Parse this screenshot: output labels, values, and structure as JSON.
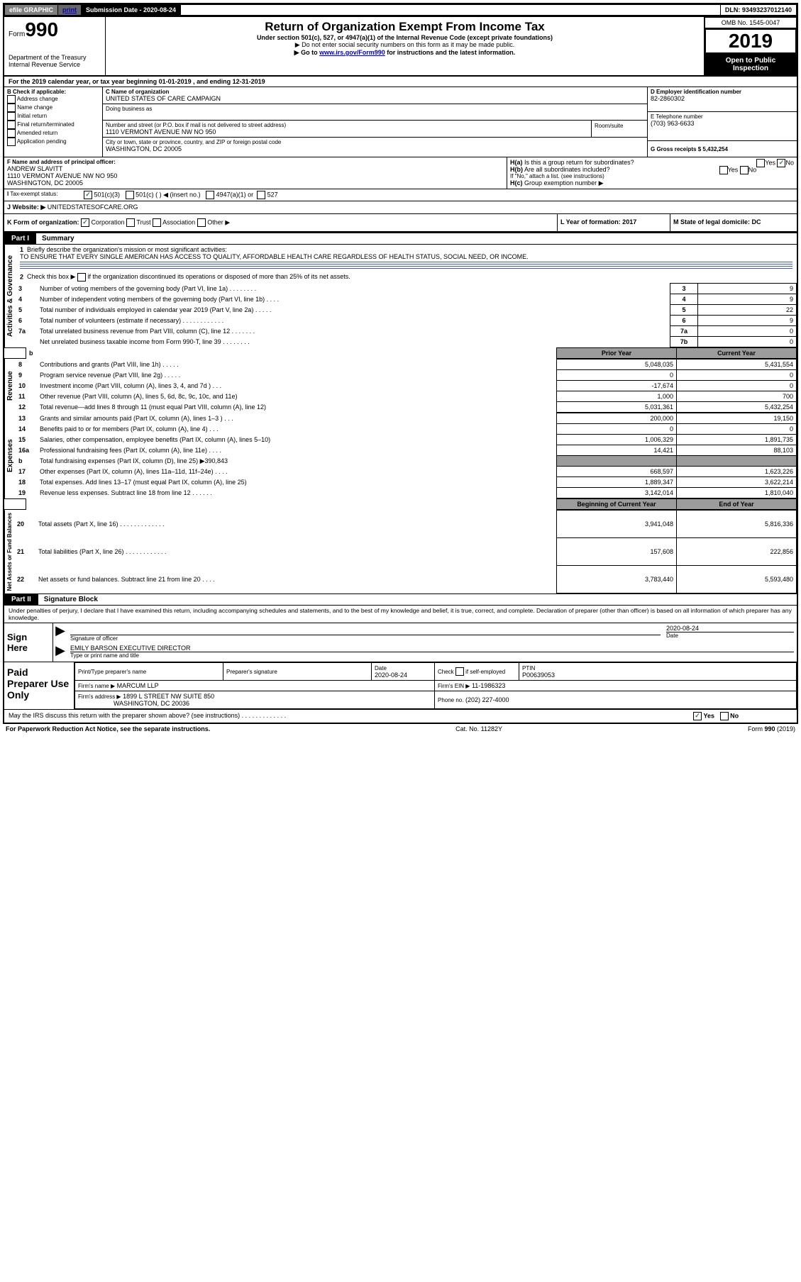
{
  "topbar": {
    "efile": "efile GRAPHIC",
    "print": "print",
    "sub_label": "Submission Date - 2020-08-24",
    "dln": "DLN: 93493237012140"
  },
  "header": {
    "form_prefix": "Form",
    "form_num": "990",
    "dept1": "Department of the Treasury",
    "dept2": "Internal Revenue Service",
    "title": "Return of Organization Exempt From Income Tax",
    "sub1": "Under section 501(c), 527, or 4947(a)(1) of the Internal Revenue Code (except private foundations)",
    "sub2": "▶ Do not enter social security numbers on this form as it may be made public.",
    "sub3_pre": "▶ Go to ",
    "sub3_link": "www.irs.gov/Form990",
    "sub3_post": " for instructions and the latest information.",
    "omb": "OMB No. 1545-0047",
    "year": "2019",
    "open": "Open to Public Inspection"
  },
  "period": {
    "line": "For the 2019 calendar year, or tax year beginning 01-01-2019   , and ending 12-31-2019"
  },
  "boxA": {
    "title": "A",
    "label": "B Check if applicable:",
    "opts": [
      "Address change",
      "Name change",
      "Initial return",
      "Final return/terminated",
      "Amended return",
      "Application pending"
    ]
  },
  "boxC": {
    "name_lbl": "C Name of organization",
    "name": "UNITED STATES OF CARE CAMPAIGN",
    "dba_lbl": "Doing business as",
    "addr_lbl": "Number and street (or P.O. box if mail is not delivered to street address)",
    "room_lbl": "Room/suite",
    "addr": "1110 VERMONT AVENUE NW NO 950",
    "city_lbl": "City or town, state or province, country, and ZIP or foreign postal code",
    "city": "WASHINGTON, DC  20005"
  },
  "boxD": {
    "lbl": "D Employer identification number",
    "val": "82-2860302"
  },
  "boxE": {
    "lbl": "E Telephone number",
    "val": "(703) 963-6633"
  },
  "boxG": {
    "lbl": "G Gross receipts $ 5,432,254"
  },
  "boxF": {
    "lbl": "F  Name and address of principal officer:",
    "name": "ANDREW SLAVITT",
    "addr1": "1110 VERMONT AVENUE NW NO 950",
    "addr2": "WASHINGTON, DC  20005"
  },
  "boxH": {
    "a": "Is this a group return for subordinates?",
    "b": "Are all subordinates included?",
    "note": "If \"No,\" attach a list. (see instructions)",
    "c": "Group exemption number ▶"
  },
  "boxI": {
    "lbl": "Tax-exempt status:",
    "o1": "501(c)(3)",
    "o2": "501(c) (   ) ◀ (insert no.)",
    "o3": "4947(a)(1) or",
    "o4": "527"
  },
  "boxJ": {
    "lbl": "Website: ▶",
    "val": "UNITEDSTATESOFCARE.ORG"
  },
  "boxK": {
    "lbl": "K Form of organization:",
    "o1": "Corporation",
    "o2": "Trust",
    "o3": "Association",
    "o4": "Other ▶"
  },
  "boxL": {
    "lbl": "L Year of formation: 2017"
  },
  "boxM": {
    "lbl": "M State of legal domicile: DC"
  },
  "part1": {
    "tab": "Part I",
    "title": "Summary",
    "q1_lbl": "Briefly describe the organization's mission or most significant activities:",
    "q1_val": "TO ENSURE THAT EVERY SINGLE AMERICAN HAS ACCESS TO QUALITY, AFFORDABLE HEALTH CARE REGARDLESS OF HEALTH STATUS, SOCIAL NEED, OR INCOME.",
    "q2": "Check this box ▶  if the organization discontinued its operations or disposed of more than 25% of its net assets.",
    "rows_ag": [
      {
        "n": "3",
        "t": "Number of voting members of the governing body (Part VI, line 1a)  .    .    .    .    .    .    .    .",
        "box": "3",
        "v": "9"
      },
      {
        "n": "4",
        "t": "Number of independent voting members of the governing body (Part VI, line 1b)  .    .    .    .",
        "box": "4",
        "v": "9"
      },
      {
        "n": "5",
        "t": "Total number of individuals employed in calendar year 2019 (Part V, line 2a)  .    .    .    .    .",
        "box": "5",
        "v": "22"
      },
      {
        "n": "6",
        "t": "Total number of volunteers (estimate if necessary)    .    .    .    .    .    .    .    .    .    .    .    .",
        "box": "6",
        "v": "9"
      },
      {
        "n": "7a",
        "t": "Total unrelated business revenue from Part VIII, column (C), line 12   .    .    .    .    .    .    .",
        "box": "7a",
        "v": "0"
      },
      {
        "n": "",
        "t": "Net unrelated business taxable income from Form 990-T, line 39   .    .    .    .    .    .    .    .",
        "box": "7b",
        "v": "0"
      }
    ],
    "col_prior": "Prior Year",
    "col_curr": "Current Year",
    "rows_rev": [
      {
        "n": "8",
        "t": "Contributions and grants (Part VIII, line 1h)    .    .    .    .    .",
        "p": "5,048,035",
        "c": "5,431,554"
      },
      {
        "n": "9",
        "t": "Program service revenue (Part VIII, line 2g)    .    .    .    .    .",
        "p": "0",
        "c": "0"
      },
      {
        "n": "10",
        "t": "Investment income (Part VIII, column (A), lines 3, 4, and 7d )    .    .    .",
        "p": "-17,674",
        "c": "0"
      },
      {
        "n": "11",
        "t": "Other revenue (Part VIII, column (A), lines 5, 6d, 8c, 9c, 10c, and 11e)",
        "p": "1,000",
        "c": "700"
      },
      {
        "n": "12",
        "t": "Total revenue—add lines 8 through 11 (must equal Part VIII, column (A), line 12)",
        "p": "5,031,361",
        "c": "5,432,254"
      }
    ],
    "rows_exp": [
      {
        "n": "13",
        "t": "Grants and similar amounts paid (Part IX, column (A), lines 1–3 )   .    .    .",
        "p": "200,000",
        "c": "19,150"
      },
      {
        "n": "14",
        "t": "Benefits paid to or for members (Part IX, column (A), line 4)   .    .    .",
        "p": "0",
        "c": "0"
      },
      {
        "n": "15",
        "t": "Salaries, other compensation, employee benefits (Part IX, column (A), lines 5–10)",
        "p": "1,006,329",
        "c": "1,891,735"
      },
      {
        "n": "16a",
        "t": "Professional fundraising fees (Part IX, column (A), line 11e)   .    .    .    .",
        "p": "14,421",
        "c": "88,103"
      },
      {
        "n": "b",
        "t": "Total fundraising expenses (Part IX, column (D), line 25) ▶390,843",
        "p": "",
        "c": "",
        "shade": true
      },
      {
        "n": "17",
        "t": "Other expenses (Part IX, column (A), lines 11a–11d, 11f–24e)   .    .    .    .",
        "p": "668,597",
        "c": "1,623,226"
      },
      {
        "n": "18",
        "t": "Total expenses. Add lines 13–17 (must equal Part IX, column (A), line 25)",
        "p": "1,889,347",
        "c": "3,622,214"
      },
      {
        "n": "19",
        "t": "Revenue less expenses. Subtract line 18 from line 12  .    .    .    .    .    .",
        "p": "3,142,014",
        "c": "1,810,040"
      }
    ],
    "col_beg": "Beginning of Current Year",
    "col_end": "End of Year",
    "rows_net": [
      {
        "n": "20",
        "t": "Total assets (Part X, line 16)  .    .    .    .    .    .    .    .    .    .    .    .    .",
        "p": "3,941,048",
        "c": "5,816,336"
      },
      {
        "n": "21",
        "t": "Total liabilities (Part X, line 26)  .    .    .    .    .    .    .    .    .    .    .    .",
        "p": "157,608",
        "c": "222,856"
      },
      {
        "n": "22",
        "t": "Net assets or fund balances. Subtract line 21 from line 20   .    .    .    .",
        "p": "3,783,440",
        "c": "5,593,480"
      }
    ],
    "vlabels": {
      "ag": "Activities & Governance",
      "rev": "Revenue",
      "exp": "Expenses",
      "net": "Net Assets or Fund Balances"
    }
  },
  "part2": {
    "tab": "Part II",
    "title": "Signature Block",
    "decl": "Under penalties of perjury, I declare that I have examined this return, including accompanying schedules and statements, and to the best of my knowledge and belief, it is true, correct, and complete. Declaration of preparer (other than officer) is based on all information of which preparer has any knowledge.",
    "sign_here": "Sign Here",
    "sig_officer": "Signature of officer",
    "sig_date": "Date",
    "sig_date_val": "2020-08-24",
    "sig_name": "EMILY BARSON  EXECUTIVE DIRECTOR",
    "sig_name_lbl": "Type or print name and title",
    "paid": "Paid Preparer Use Only",
    "prep_name_lbl": "Print/Type preparer's name",
    "prep_sig_lbl": "Preparer's signature",
    "prep_date_lbl": "Date",
    "prep_date_val": "2020-08-24",
    "prep_check": "Check      if self-employed",
    "ptin_lbl": "PTIN",
    "ptin_val": "P00639053",
    "firm_name_lbl": "Firm's name   ▶",
    "firm_name": "MARCUM LLP",
    "firm_ein_lbl": "Firm's EIN ▶",
    "firm_ein": "11-1986323",
    "firm_addr_lbl": "Firm's address ▶",
    "firm_addr1": "1899 L STREET NW SUITE 850",
    "firm_addr2": "WASHINGTON, DC  20036",
    "phone_lbl": "Phone no.",
    "phone_val": "(202) 227-4000",
    "discuss": "May the IRS discuss this return with the preparer shown above? (see instructions)   .    .    .    .    .    .    .    .    .    .    .    .    .",
    "yes": "Yes",
    "no": "No"
  },
  "footer": {
    "left": "For Paperwork Reduction Act Notice, see the separate instructions.",
    "mid": "Cat. No. 11282Y",
    "right": "Form 990 (2019)"
  }
}
